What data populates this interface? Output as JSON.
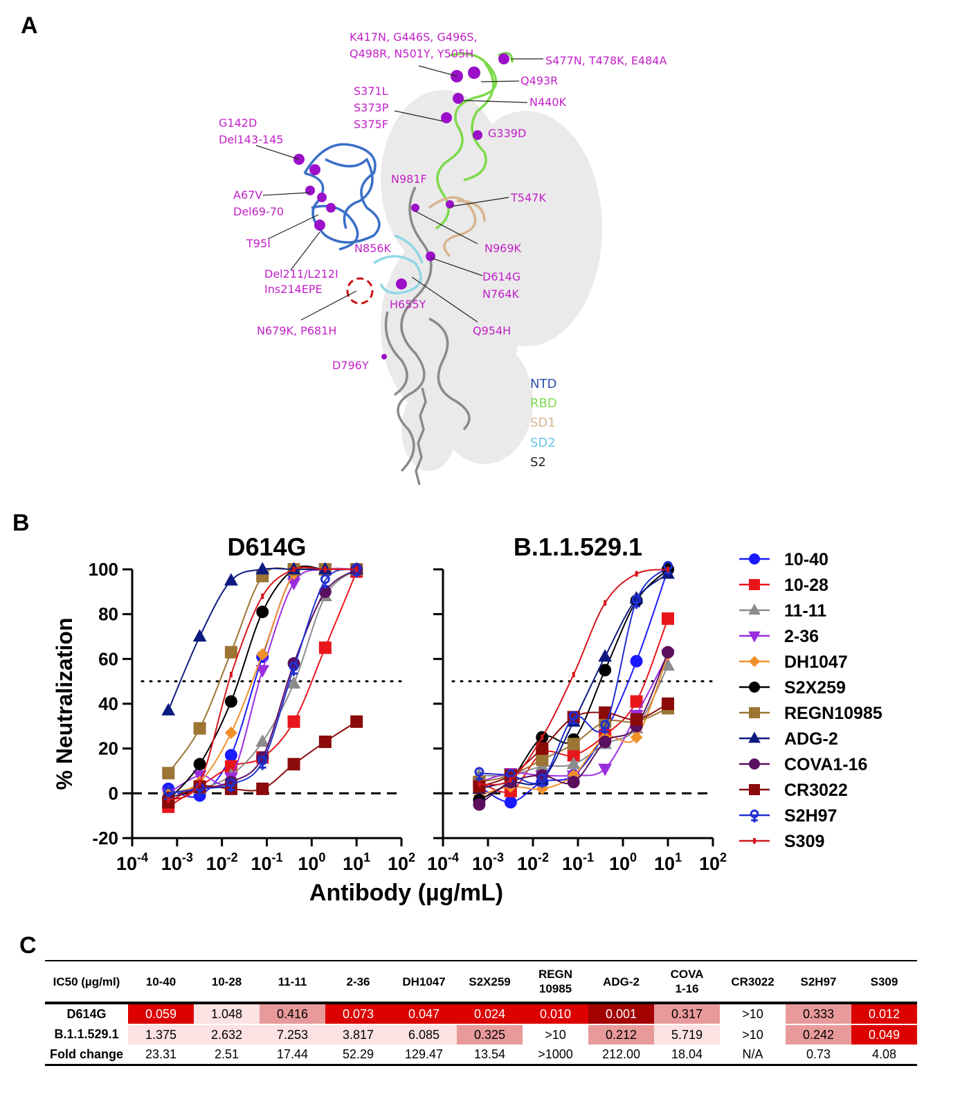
{
  "panel_labels": {
    "a": "A",
    "b": "B",
    "c": "C"
  },
  "panel_a": {
    "mutations": [
      "K417N, G446S, G496S,",
      "Q498R, N501Y, Y505H",
      "S477N, T478K, E484A",
      "Q493R",
      "N440K",
      "S371L",
      "S373P",
      "S375F",
      "G339D",
      "G142D",
      "Del143-145",
      "N981F",
      "T547K",
      "A67V",
      "Del69-70",
      "T95I",
      "N856K",
      "N969K",
      "Del211/L212I",
      "Ins214EPE",
      "D614G",
      "N764K",
      "H655Y",
      "N679K, P681H",
      "Q954H",
      "D796Y"
    ],
    "domain_legend": [
      {
        "label": "NTD",
        "color": "#2e4fa8"
      },
      {
        "label": "RBD",
        "color": "#7ed94c"
      },
      {
        "label": "SD1",
        "color": "#d8b48e"
      },
      {
        "label": "SD2",
        "color": "#6ec3e8"
      },
      {
        "label": "S2",
        "color": "#222222"
      }
    ],
    "mutation_color": "#c21fc8"
  },
  "chart_data": [
    {
      "type": "line",
      "title": "D614G",
      "ylabel": "% Neutralization",
      "xlabel": "Antibody (µg/mL)",
      "xscale": "log",
      "xlim": [
        0.0001,
        100
      ],
      "ylim": [
        -20,
        100
      ],
      "yticks": [
        "100",
        "80",
        "60",
        "40",
        "20",
        "0",
        "-20"
      ],
      "xticks": [
        {
          "base": "10",
          "exp": "-4"
        },
        {
          "base": "10",
          "exp": "-3"
        },
        {
          "base": "10",
          "exp": "-2"
        },
        {
          "base": "10",
          "exp": "-1"
        },
        {
          "base": "10",
          "exp": "0"
        },
        {
          "base": "10",
          "exp": "1"
        },
        {
          "base": "10",
          "exp": "2"
        }
      ],
      "reference_lines": [
        50,
        0
      ],
      "x": [
        0.00064,
        0.0032,
        0.016,
        0.08,
        0.4,
        2,
        10
      ],
      "series": [
        {
          "name": "10-40",
          "values": [
            2,
            -1,
            17,
            61,
            98,
            100,
            100
          ]
        },
        {
          "name": "10-28",
          "values": [
            -6,
            3,
            12,
            16,
            32,
            65,
            99
          ]
        },
        {
          "name": "11-11",
          "values": [
            0,
            2,
            8,
            23,
            49,
            88,
            100
          ]
        },
        {
          "name": "2-36",
          "values": [
            0,
            8,
            7,
            55,
            94,
            100,
            100
          ]
        },
        {
          "name": "DH1047",
          "values": [
            0,
            5,
            27,
            62,
            98,
            100,
            100
          ]
        },
        {
          "name": "S2X259",
          "values": [
            -3,
            13,
            41,
            81,
            100,
            100,
            100
          ]
        },
        {
          "name": "REGN10985",
          "values": [
            9,
            29,
            63,
            97,
            100,
            100,
            100
          ]
        },
        {
          "name": "ADG-2",
          "values": [
            37,
            70,
            95,
            100,
            100,
            100,
            100
          ]
        },
        {
          "name": "COVA1-16",
          "values": [
            -2,
            2,
            5,
            16,
            58,
            90,
            100
          ]
        },
        {
          "name": "CR3022",
          "values": [
            -4,
            3,
            2,
            2,
            13,
            23,
            32
          ]
        },
        {
          "name": "S2H97",
          "values": [
            0,
            2,
            4,
            14,
            56,
            95,
            100
          ]
        },
        {
          "name": "S309",
          "values": [
            -3,
            5,
            53,
            88,
            100,
            100,
            100
          ]
        }
      ]
    },
    {
      "type": "line",
      "title": "B.1.1.529.1",
      "xscale": "log",
      "xlim": [
        0.0001,
        100
      ],
      "ylim": [
        -20,
        100
      ],
      "xticks": [
        {
          "base": "10",
          "exp": "-4"
        },
        {
          "base": "10",
          "exp": "-3"
        },
        {
          "base": "10",
          "exp": "-2"
        },
        {
          "base": "10",
          "exp": "-1"
        },
        {
          "base": "10",
          "exp": "0"
        },
        {
          "base": "10",
          "exp": "1"
        },
        {
          "base": "10",
          "exp": "2"
        }
      ],
      "reference_lines": [
        50,
        0
      ],
      "x": [
        0.00064,
        0.0032,
        0.016,
        0.08,
        0.4,
        2,
        10
      ],
      "series": [
        {
          "name": "10-40",
          "values": [
            3,
            -4,
            5,
            8,
            27,
            59,
            100
          ]
        },
        {
          "name": "10-28",
          "values": [
            5,
            1,
            18,
            17,
            26,
            41,
            78
          ]
        },
        {
          "name": "11-11",
          "values": [
            8,
            8,
            12,
            13,
            22,
            29,
            57
          ]
        },
        {
          "name": "2-36",
          "values": [
            5,
            9,
            8,
            8,
            11,
            35,
            62
          ]
        },
        {
          "name": "DH1047",
          "values": [
            -1,
            3,
            2,
            8,
            25,
            25,
            62
          ]
        },
        {
          "name": "S2X259",
          "values": [
            -3,
            6,
            25,
            24,
            55,
            86,
            100
          ]
        },
        {
          "name": "REGN10985",
          "values": [
            5,
            8,
            15,
            22,
            32,
            32,
            38
          ]
        },
        {
          "name": "ADG-2",
          "values": [
            2,
            5,
            6,
            32,
            61,
            87,
            98
          ]
        },
        {
          "name": "COVA1-16",
          "values": [
            -5,
            5,
            8,
            5,
            23,
            30,
            63
          ]
        },
        {
          "name": "CR3022",
          "values": [
            3,
            8,
            20,
            34,
            36,
            33,
            40
          ]
        },
        {
          "name": "S2H97",
          "values": [
            9,
            8,
            6,
            34,
            30,
            86,
            101
          ]
        },
        {
          "name": "S309",
          "values": [
            4,
            6,
            25,
            53,
            85,
            98,
            100
          ]
        }
      ]
    }
  ],
  "legend": [
    {
      "name": "10-40",
      "color": "#1a1aff",
      "marker": "circle"
    },
    {
      "name": "10-28",
      "color": "#e8161b",
      "marker": "square"
    },
    {
      "name": "11-11",
      "color": "#8c8c8c",
      "marker": "triangle-up"
    },
    {
      "name": "2-36",
      "color": "#9b2de0",
      "marker": "triangle-down"
    },
    {
      "name": "DH1047",
      "color": "#f0902a",
      "marker": "diamond"
    },
    {
      "name": "S2X259",
      "color": "#000000",
      "marker": "circle"
    },
    {
      "name": "REGN10985",
      "color": "#9c7433",
      "marker": "square"
    },
    {
      "name": "ADG-2",
      "color": "#0d1a80",
      "marker": "triangle-up"
    },
    {
      "name": "COVA1-16",
      "color": "#5a0f5f",
      "marker": "circle"
    },
    {
      "name": "CR3022",
      "color": "#8b0a0a",
      "marker": "square"
    },
    {
      "name": "S2H97",
      "color": "#1f2fd0",
      "marker": "open-circle-cross"
    },
    {
      "name": "S309",
      "color": "#d6151b",
      "marker": "dash"
    }
  ],
  "table": {
    "corner": "IC50 (µg/ml)",
    "columns": [
      "10-40",
      "10-28",
      "11-11",
      "2-36",
      "DH1047",
      "S2X259",
      "REGN 10985",
      "ADG-2",
      "COVA 1-16",
      "CR3022",
      "S2H97",
      "S309"
    ],
    "rows": [
      {
        "label": "D614G",
        "values": [
          "0.059",
          "1.048",
          "0.416",
          "0.073",
          "0.047",
          "0.024",
          "0.010",
          "0.001",
          "0.317",
          ">10",
          "0.333",
          "0.012"
        ],
        "colors": [
          "#dc0000",
          "#fce2e2",
          "#e89a9b",
          "#dc0000",
          "#dc0000",
          "#dc0000",
          "#dc0000",
          "#a30000",
          "#e89a9b",
          "#ffffff",
          "#e89a9b",
          "#dc0000"
        ]
      },
      {
        "label": "B.1.1.529.1",
        "values": [
          "1.375",
          "2.632",
          "7.253",
          "3.817",
          "6.085",
          "0.325",
          ">10",
          "0.212",
          "5.719",
          ">10",
          "0.242",
          "0.049"
        ],
        "colors": [
          "#fce2e2",
          "#fce2e2",
          "#fce2e2",
          "#fce2e2",
          "#fce2e2",
          "#e89a9b",
          "#ffffff",
          "#e89a9b",
          "#fce2e2",
          "#ffffff",
          "#e89a9b",
          "#dc0000"
        ]
      },
      {
        "label": "Fold change",
        "values": [
          "23.31",
          "2.51",
          "17.44",
          "52.29",
          "129.47",
          "13.54",
          ">1000",
          "212.00",
          "18.04",
          "N/A",
          "0.73",
          "4.08"
        ],
        "colors": []
      }
    ]
  }
}
